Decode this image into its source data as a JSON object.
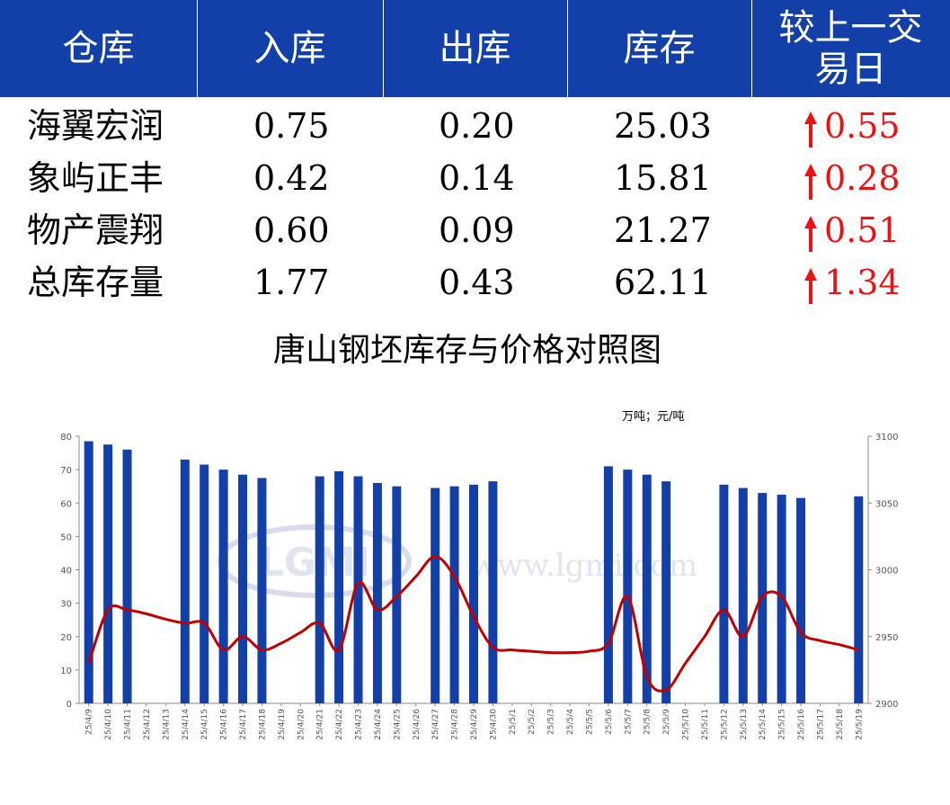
{
  "table": {
    "headers": [
      "仓库",
      "入库",
      "出库",
      "库存",
      "较上一交易日"
    ],
    "rows": [
      {
        "name": "海翼宏润",
        "in": "0.75",
        "out": "0.20",
        "stock": "25.03",
        "change": "0.55"
      },
      {
        "name": "象屿正丰",
        "in": "0.42",
        "out": "0.14",
        "stock": "15.81",
        "change": "0.28"
      },
      {
        "name": "物产震翔",
        "in": "0.60",
        "out": "0.09",
        "stock": "21.27",
        "change": "0.51"
      },
      {
        "name": "总库存量",
        "in": "1.77",
        "out": "0.43",
        "stock": "62.11",
        "change": "1.34"
      }
    ],
    "change_direction": "up-arrow-icon",
    "colors": {
      "header_bg": "#1340a8",
      "up": "#ee1111"
    }
  },
  "chart_data": {
    "type": "bar",
    "title": "唐山钢坯库存与价格对照图",
    "units": "万吨；元/吨",
    "watermark": "LGMI www.lgmi.com",
    "categories": [
      "25/4/9",
      "25/4/10",
      "25/4/11",
      "25/4/12",
      "25/4/13",
      "25/4/14",
      "25/4/15",
      "25/4/16",
      "25/4/17",
      "25/4/18",
      "25/4/19",
      "25/4/20",
      "25/4/21",
      "25/4/22",
      "25/4/23",
      "25/4/24",
      "25/4/25",
      "25/4/26",
      "25/4/27",
      "25/4/28",
      "25/4/29",
      "25/4/30",
      "25/5/1",
      "25/5/2",
      "25/5/3",
      "25/5/4",
      "25/5/5",
      "25/5/6",
      "25/5/7",
      "25/5/8",
      "25/5/9",
      "25/5/10",
      "25/5/11",
      "25/5/12",
      "25/5/13",
      "25/5/14",
      "25/5/15",
      "25/5/16",
      "25/5/17",
      "25/5/18",
      "25/5/19"
    ],
    "series": [
      {
        "type": "bar",
        "axis": "left",
        "color": "#1340a8",
        "values": [
          78.5,
          77.5,
          76,
          null,
          null,
          73,
          71.5,
          70,
          68.5,
          67.5,
          null,
          null,
          68,
          69.5,
          68,
          66,
          65,
          null,
          64.5,
          65,
          65.5,
          66.5,
          null,
          null,
          null,
          null,
          null,
          71,
          70,
          68.5,
          66.5,
          null,
          null,
          65.5,
          64.5,
          63,
          62.5,
          61.5,
          null,
          null,
          62
        ]
      },
      {
        "type": "line",
        "axis": "right",
        "color": "#c00000",
        "values": [
          2930,
          2970,
          2970,
          2967,
          2963,
          2960,
          2960,
          2940,
          2950,
          2940,
          2945,
          2953,
          2960,
          2940,
          2990,
          2970,
          2980,
          2995,
          3010,
          2995,
          2965,
          2942,
          2940,
          2939,
          2938,
          2938,
          2939,
          2945,
          2980,
          2920,
          2910,
          2930,
          2950,
          2970,
          2950,
          2980,
          2980,
          2953,
          2947,
          2944,
          2940
        ]
      }
    ],
    "y_left": {
      "min": 0,
      "max": 80,
      "ticks": [
        0,
        10,
        20,
        30,
        40,
        50,
        60,
        70,
        80
      ]
    },
    "y_right": {
      "min": 2900,
      "max": 3100,
      "ticks": [
        2900,
        2950,
        3000,
        3050,
        3100
      ]
    },
    "grid": false
  }
}
